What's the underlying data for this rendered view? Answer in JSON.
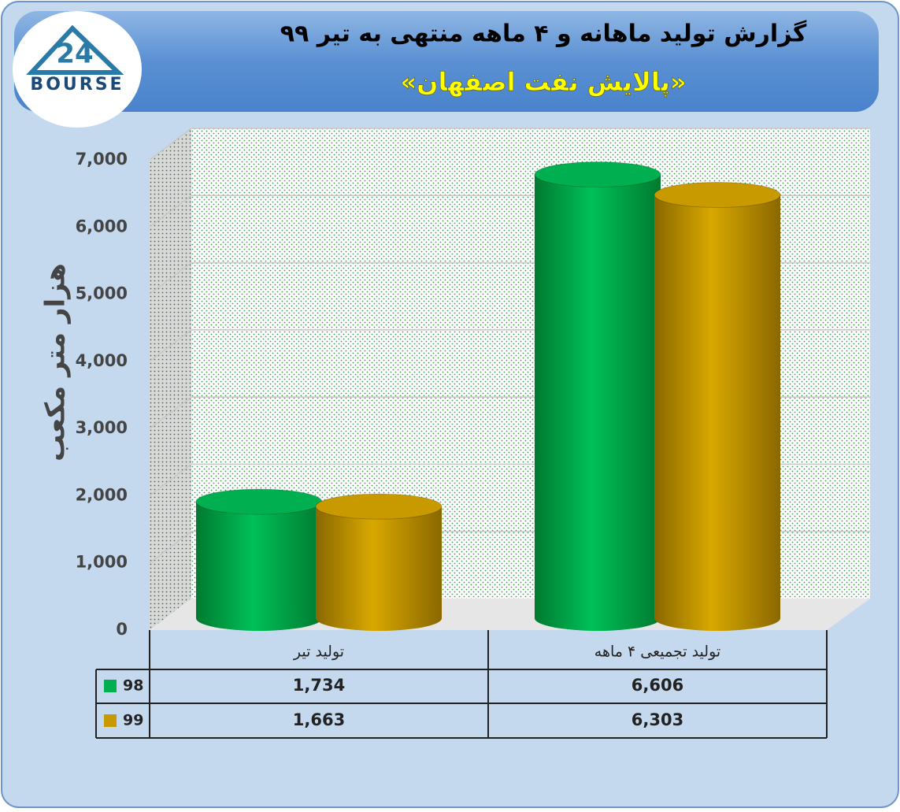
{
  "logo": {
    "mark": "24",
    "name": "BOURSE"
  },
  "chart_data": {
    "type": "bar",
    "style": "cylinder",
    "title": "گزارش تولید ماهانه و ۴ ماهه منتهی به تیر ۹۹",
    "subtitle": "«پالایش نفت اصفهان»",
    "y_label": "هزار متر مکعب",
    "categories": [
      "تولید تیر",
      "تولید تجمیعی ۴ ماهه"
    ],
    "series": [
      {
        "name": "98",
        "color": "#00b050",
        "values": [
          1734,
          6606
        ],
        "value_labels": [
          "1,734",
          "6,606"
        ]
      },
      {
        "name": "99",
        "color": "#c99a00",
        "values": [
          1663,
          6303
        ],
        "value_labels": [
          "1,663",
          "6,303"
        ]
      }
    ],
    "ylim": [
      0,
      7000
    ],
    "yticks": [
      0,
      {
        "value": 1000,
        "label": "1,000"
      },
      {
        "value": 2000,
        "label": "2,000"
      },
      {
        "value": 3000,
        "label": "3,000"
      },
      {
        "value": 4000,
        "label": "4,000"
      },
      {
        "value": 5000,
        "label": "5,000"
      },
      {
        "value": 6000,
        "label": "6,000"
      },
      {
        "value": 7000,
        "label": "7,000"
      }
    ],
    "grid": true,
    "data_table": true
  }
}
